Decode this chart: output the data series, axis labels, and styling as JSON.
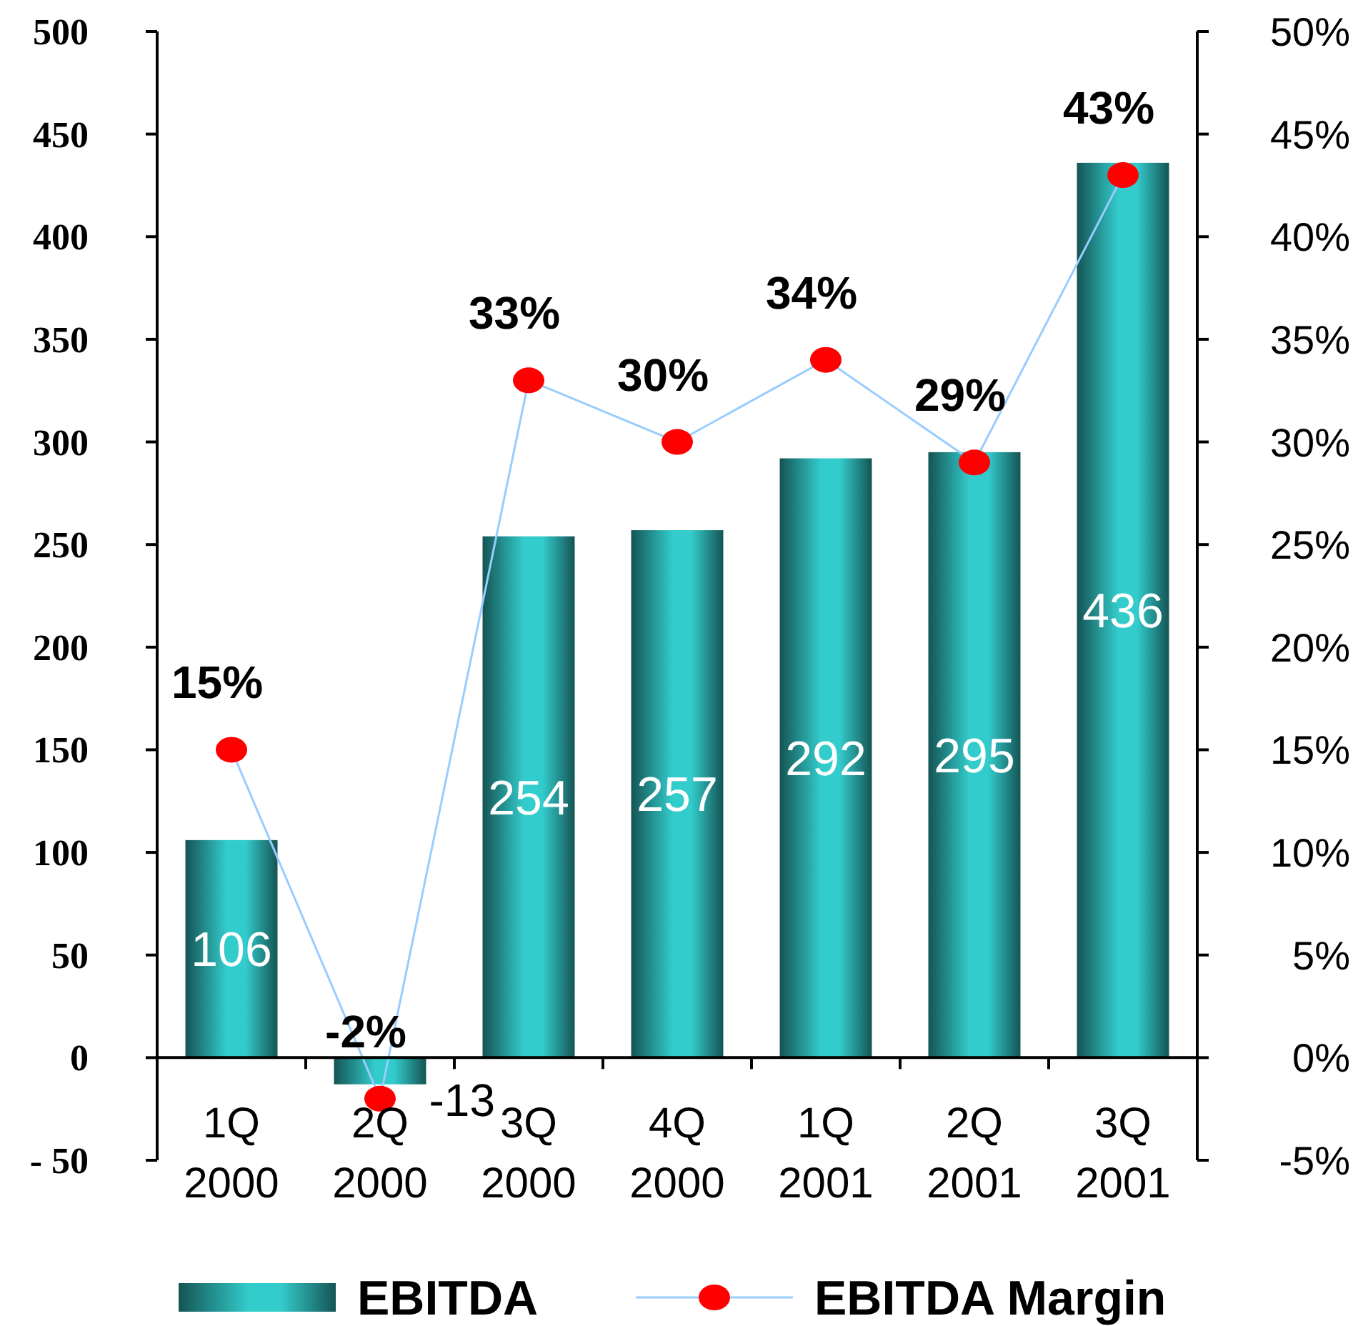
{
  "chart_data": {
    "type": "bar",
    "categories": [
      "1Q 2000",
      "2Q 2000",
      "3Q 2000",
      "4Q 2000",
      "1Q 2001",
      "2Q 2001",
      "3Q 2001"
    ],
    "series": [
      {
        "name": "EBITDA",
        "color": "#33cccc",
        "values": [
          106,
          -13,
          254,
          257,
          292,
          295,
          436
        ]
      },
      {
        "name": "EBITDA Margin",
        "type": "line",
        "axis": "y2",
        "color": "#ff0000",
        "marker": "circle",
        "values": [
          15,
          -2,
          33,
          30,
          34,
          29,
          43
        ],
        "value_labels": [
          "15%",
          "-2%",
          "33%",
          "30%",
          "34%",
          "29%",
          "43%"
        ]
      }
    ],
    "data_labels": true,
    "ylim": [
      -50,
      500
    ],
    "yticks": [
      {
        "value": -50,
        "label": "- 50"
      },
      0,
      50,
      100,
      150,
      200,
      250,
      300,
      350,
      400,
      450,
      500
    ],
    "y2lim": [
      -5,
      50
    ],
    "y2ticks": [
      {
        "value": -5,
        "label": "-5%"
      },
      {
        "value": 0,
        "label": "0%"
      },
      {
        "value": 5,
        "label": "5%"
      },
      {
        "value": 10,
        "label": "10%"
      },
      {
        "value": 15,
        "label": "15%"
      },
      {
        "value": 20,
        "label": "20%"
      },
      {
        "value": 25,
        "label": "25%"
      },
      {
        "value": 30,
        "label": "30%"
      },
      {
        "value": 35,
        "label": "35%"
      },
      {
        "value": 40,
        "label": "40%"
      },
      {
        "value": 45,
        "label": "45%"
      },
      {
        "value": 50,
        "label": "50%"
      }
    ],
    "grid": false,
    "legend": "bottom"
  }
}
